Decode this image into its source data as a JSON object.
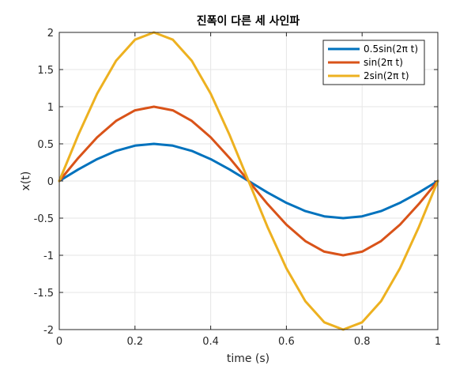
{
  "chart_data": {
    "type": "line",
    "title": "진폭이 다른 세 사인파",
    "xlabel": "time (s)",
    "ylabel": "x(t)",
    "xlim": [
      0,
      1
    ],
    "ylim": [
      -2,
      2
    ],
    "xticks": [
      0,
      0.2,
      0.4,
      0.6,
      0.8,
      1
    ],
    "xtick_labels": [
      "0",
      "0.2",
      "0.4",
      "0.6",
      "0.8",
      "1"
    ],
    "yticks": [
      2,
      1.5,
      1,
      0.5,
      0,
      -0.5,
      -1,
      -1.5,
      -2
    ],
    "ytick_labels": [
      "2",
      "1.5",
      "1",
      "0.5",
      "0",
      "-0.5",
      "-1",
      "-1.5",
      "-2"
    ],
    "grid": true,
    "legend_position": "top-right",
    "x": [
      0,
      0.05,
      0.1,
      0.15,
      0.2,
      0.25,
      0.3,
      0.35,
      0.4,
      0.45,
      0.5,
      0.55,
      0.6,
      0.65,
      0.7,
      0.75,
      0.8,
      0.85,
      0.9,
      0.95,
      1
    ],
    "series": [
      {
        "name": "0.5sin(2π t)",
        "color": "#0072BD",
        "values": [
          0,
          0.155,
          0.294,
          0.405,
          0.476,
          0.5,
          0.476,
          0.405,
          0.294,
          0.155,
          0,
          -0.155,
          -0.294,
          -0.405,
          -0.476,
          -0.5,
          -0.476,
          -0.405,
          -0.294,
          -0.155,
          0
        ]
      },
      {
        "name": "sin(2π t)",
        "color": "#D95319",
        "values": [
          0,
          0.309,
          0.588,
          0.809,
          0.951,
          1,
          0.951,
          0.809,
          0.588,
          0.309,
          0,
          -0.309,
          -0.588,
          -0.809,
          -0.951,
          -1,
          -0.951,
          -0.809,
          -0.588,
          -0.309,
          0
        ]
      },
      {
        "name": "2sin(2π t)",
        "color": "#EDB120",
        "values": [
          0,
          0.618,
          1.176,
          1.618,
          1.902,
          2,
          1.902,
          1.618,
          1.176,
          0.618,
          0,
          -0.618,
          -1.176,
          -1.618,
          -1.902,
          -2,
          -1.902,
          -1.618,
          -1.176,
          -0.618,
          0
        ]
      }
    ]
  }
}
